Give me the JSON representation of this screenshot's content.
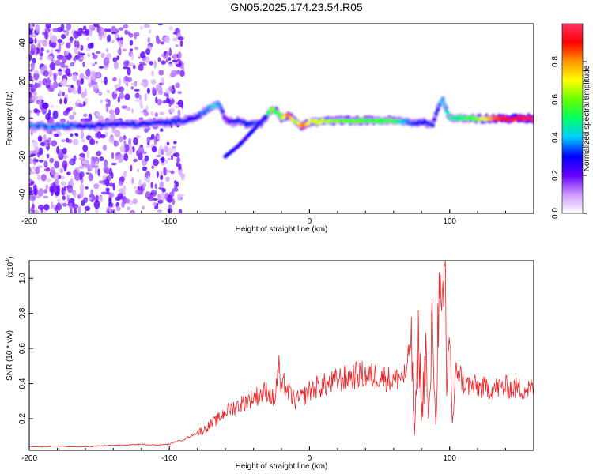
{
  "title": "GN05.2025.174.23.54.R05",
  "chart_data": [
    {
      "type": "heatmap",
      "xlabel": "Height of straight line (km)",
      "ylabel": "Frequency (Hz)",
      "xlim": [
        -200,
        160
      ],
      "ylim": [
        -50,
        50
      ],
      "xticks": [
        -200,
        -100,
        0,
        100
      ],
      "xtick_labels": [
        "-200",
        "-100",
        "0",
        "100"
      ],
      "yticks": [
        -40,
        -20,
        0,
        20,
        40
      ],
      "ytick_labels": [
        "-40",
        "-20",
        "0",
        "20",
        "40"
      ],
      "colorbar": {
        "label": "Normalized spectral amplitude",
        "range": [
          0,
          1
        ],
        "ticks": [
          0.0,
          0.2,
          0.4,
          0.6,
          0.8
        ],
        "tick_labels": [
          "0.0",
          "0.2",
          "0.4",
          "0.6",
          "0.8"
        ],
        "colors": [
          "#ffffff",
          "#cc99ff",
          "#6600ff",
          "#0000ff",
          "#00ccff",
          "#00ff66",
          "#66ff00",
          "#ffff00",
          "#ff9900",
          "#ff0000",
          "#ff3366"
        ]
      },
      "ridge": {
        "x": [
          -200,
          -180,
          -160,
          -140,
          -120,
          -100,
          -90,
          -80,
          -72,
          -65,
          -60,
          -55,
          -50,
          -45,
          -40,
          -35,
          -30,
          -27,
          -24,
          -20,
          -15,
          -10,
          -5,
          0,
          20,
          40,
          60,
          70,
          80,
          88,
          92,
          95,
          100,
          110,
          120,
          130,
          140,
          150,
          160
        ],
        "y": [
          -4,
          -4,
          -4,
          -3,
          -3,
          -2,
          -1,
          1,
          5,
          8,
          0,
          -2,
          -1,
          -3,
          -3,
          -3,
          2,
          5,
          4,
          0,
          2,
          -2,
          -4,
          -2,
          -1,
          -1,
          -1,
          -2,
          -2,
          -3,
          6,
          10,
          0,
          0,
          0,
          0,
          0,
          0,
          0
        ],
        "amplitude": [
          0.35,
          0.35,
          0.3,
          0.3,
          0.3,
          0.3,
          0.3,
          0.3,
          0.4,
          0.4,
          0.2,
          0.25,
          0.3,
          0.3,
          0.35,
          0.35,
          0.45,
          0.6,
          0.55,
          0.6,
          0.85,
          0.6,
          0.85,
          0.7,
          0.6,
          0.55,
          0.55,
          0.35,
          0.3,
          0.3,
          0.3,
          0.4,
          0.45,
          0.5,
          0.6,
          0.8,
          0.95,
          0.95,
          0.95
        ]
      },
      "branch": {
        "x": [
          -60,
          -55,
          -50,
          -45,
          -40,
          -35,
          -30
        ],
        "y": [
          -20,
          -17,
          -14,
          -10,
          -6,
          -2,
          2
        ]
      }
    },
    {
      "type": "line",
      "xlabel": "Height of straight line (km)",
      "ylabel": "SNR (10 * v/v)",
      "multiplier_label": "(x10",
      "multiplier_exp": "4",
      "multiplier_close": ")",
      "xlim": [
        -200,
        160
      ],
      "ylim": [
        0.02,
        1.1
      ],
      "xticks": [
        -200,
        -100,
        0,
        100
      ],
      "xtick_labels": [
        "-200",
        "-100",
        "0",
        "100"
      ],
      "yticks": [
        0.2,
        0.4,
        0.6,
        0.8,
        1.0
      ],
      "ytick_labels": [
        "0.2",
        "0.4",
        "0.6",
        "0.8",
        "1.0"
      ],
      "color": "#e8262a",
      "series": [
        {
          "x": [
            -200,
            -190,
            -180,
            -170,
            -160,
            -150,
            -140,
            -130,
            -120,
            -110,
            -100,
            -95,
            -90,
            -85,
            -80,
            -75,
            -70,
            -65,
            -60,
            -55,
            -50,
            -45,
            -40,
            -35,
            -30,
            -25,
            -22,
            -20,
            -18,
            -15,
            -10,
            -5,
            0,
            5,
            10,
            15,
            20,
            25,
            30,
            35,
            40,
            45,
            50,
            55,
            60,
            65,
            70,
            72,
            75,
            78,
            80,
            83,
            85,
            88,
            90,
            92,
            95,
            97,
            98,
            100,
            102,
            105,
            110,
            120,
            130,
            140,
            150,
            160
          ],
          "y": [
            0.04,
            0.04,
            0.045,
            0.04,
            0.04,
            0.045,
            0.05,
            0.05,
            0.055,
            0.05,
            0.055,
            0.07,
            0.08,
            0.1,
            0.12,
            0.14,
            0.17,
            0.2,
            0.24,
            0.26,
            0.28,
            0.3,
            0.32,
            0.34,
            0.36,
            0.3,
            0.5,
            0.35,
            0.4,
            0.35,
            0.3,
            0.32,
            0.36,
            0.38,
            0.39,
            0.4,
            0.42,
            0.43,
            0.44,
            0.45,
            0.45,
            0.44,
            0.45,
            0.43,
            0.42,
            0.44,
            0.45,
            0.75,
            0.1,
            0.7,
            0.2,
            0.6,
            0.15,
            0.8,
            0.12,
            0.85,
            0.7,
            1.1,
            0.3,
            0.8,
            0.15,
            0.5,
            0.4,
            0.38,
            0.37,
            0.38,
            0.37,
            0.37
          ]
        }
      ]
    }
  ]
}
